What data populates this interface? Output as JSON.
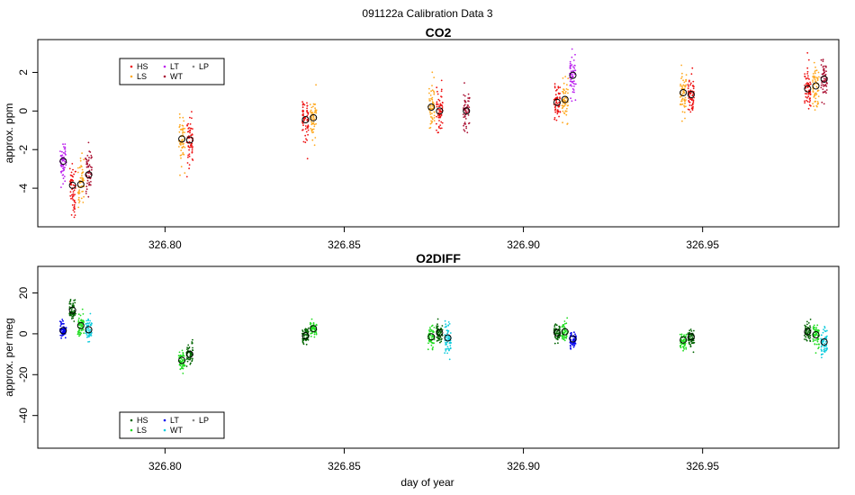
{
  "figure": {
    "title": "091122a   Calibration Data 3",
    "xlabel": "day of year"
  },
  "chart_data": [
    {
      "type": "scatter",
      "title": "CO2",
      "xlabel": "",
      "ylabel": "approx. ppm",
      "xlim": [
        326.7645,
        326.988
      ],
      "ylim": [
        -6.0,
        3.7
      ],
      "xticks": [
        326.8,
        326.85,
        326.9,
        326.95
      ],
      "xtick_labels": [
        "326.80",
        "326.85",
        "326.90",
        "326.95"
      ],
      "yticks": [
        -4,
        -2,
        0,
        2
      ],
      "ytick_labels": [
        "-4",
        "-2",
        "0",
        "2"
      ],
      "legend": {
        "position": "top-left",
        "entries": [
          "HS",
          "LS",
          "LT",
          "WT",
          "LP"
        ]
      },
      "series": [
        {
          "name": "HS",
          "color": "#ee1111",
          "x": [
            326.7742,
            326.8069,
            326.8392,
            326.8766,
            326.9094,
            326.9468,
            326.9793
          ],
          "y": [
            -3.85,
            -1.5,
            -0.45,
            0.0,
            0.45,
            0.85,
            1.15
          ],
          "spread": [
            0.7,
            0.55,
            0.55,
            0.55,
            0.55,
            0.5,
            0.55
          ]
        },
        {
          "name": "LS",
          "color": "#ffaa22",
          "x": [
            326.7765,
            326.8047,
            326.8414,
            326.8743,
            326.9116,
            326.9446,
            326.9816
          ],
          "y": [
            -3.8,
            -1.45,
            -0.35,
            0.2,
            0.6,
            0.95,
            1.3
          ],
          "spread": [
            0.75,
            0.6,
            0.6,
            0.6,
            0.6,
            0.6,
            0.6
          ]
        },
        {
          "name": "LT",
          "color": "#bb22ee",
          "x": [
            326.7716,
            326.9138
          ],
          "y": [
            -2.6,
            1.85
          ],
          "spread": [
            0.45,
            0.55
          ]
        },
        {
          "name": "WT",
          "color": "#aa1133",
          "x": [
            326.7787,
            326.8841,
            326.9839
          ],
          "y": [
            -3.3,
            0.0,
            1.65
          ],
          "spread": [
            0.7,
            0.5,
            0.55
          ]
        }
      ]
    },
    {
      "type": "scatter",
      "title": "O2DIFF",
      "xlabel": "day of year",
      "ylabel": "approx. per meg",
      "xlim": [
        326.7645,
        326.988
      ],
      "ylim": [
        -56,
        33
      ],
      "xticks": [
        326.8,
        326.85,
        326.9,
        326.95
      ],
      "xtick_labels": [
        "326.80",
        "326.85",
        "326.90",
        "326.95"
      ],
      "yticks": [
        -40,
        -20,
        0,
        20
      ],
      "ytick_labels": [
        "-40",
        "-20",
        "0",
        "20"
      ],
      "legend": {
        "position": "bottom-left",
        "entries": [
          "HS",
          "LS",
          "LT",
          "WT",
          "LP"
        ]
      },
      "series": [
        {
          "name": "HS",
          "color": "#006400",
          "x": [
            326.7742,
            326.8069,
            326.8392,
            326.8766,
            326.9094,
            326.9468,
            326.9793
          ],
          "y": [
            11.5,
            -10.0,
            -1.0,
            0.5,
            0.5,
            -1.5,
            1.0
          ],
          "spread": [
            2.5,
            2.5,
            2.0,
            2.0,
            2.0,
            2.0,
            2.5
          ]
        },
        {
          "name": "LS",
          "color": "#22dd22",
          "x": [
            326.7765,
            326.8047,
            326.8414,
            326.8743,
            326.9116,
            326.9446,
            326.9816
          ],
          "y": [
            4.0,
            -13.0,
            2.5,
            -1.5,
            1.0,
            -3.0,
            -0.5
          ],
          "spread": [
            2.5,
            2.5,
            2.0,
            2.5,
            2.0,
            2.0,
            3.0
          ]
        },
        {
          "name": "LT",
          "color": "#0000ee",
          "x": [
            326.7716,
            326.9138
          ],
          "y": [
            1.5,
            -2.5
          ],
          "spread": [
            1.8,
            1.8
          ]
        },
        {
          "name": "WT",
          "color": "#11ccdd",
          "x": [
            326.7787,
            326.8789,
            326.9839
          ],
          "y": [
            2.0,
            -2.0,
            -4.0
          ],
          "spread": [
            3.0,
            4.0,
            3.5
          ]
        }
      ]
    }
  ]
}
